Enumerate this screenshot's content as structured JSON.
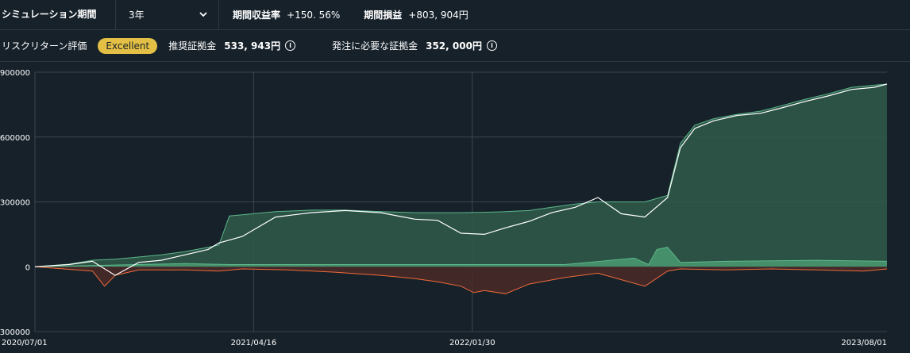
{
  "header": {
    "simulation_label": "シミュレーション期間",
    "period_value": "3年",
    "return_label": "期間収益率",
    "return_value": "+150. 56%",
    "pnl_label": "期間損益",
    "pnl_value": "+803, 904円"
  },
  "risk": {
    "label": "リスクリターン評価",
    "badge": "Excellent",
    "recommended_label": "推奨証拠金",
    "recommended_value": "533, 943円",
    "required_label": "発注に必要な証拠金",
    "required_value": "352, 000円"
  },
  "colors": {
    "background": "#16212a",
    "equity_line": "#ffffff",
    "positive_fill": "#2f5a4a",
    "positive_line": "#5db88a",
    "negative_fill": "#4a2a28",
    "negative_line": "#f06a3a",
    "badge": "#e3c045",
    "grid": "#3a4650"
  },
  "chart_data": {
    "type": "area",
    "x_start": "2020/07/01",
    "x_end": "2023/08/01",
    "x_tick_labels": [
      "2020/07/01",
      "2021/04/16",
      "2022/01/30",
      "2023/08/01"
    ],
    "y_tick_labels": [
      "900000",
      "600000",
      "300000",
      "0",
      "-300000"
    ],
    "ylim": [
      -300000,
      900000
    ],
    "grid": true,
    "series": [
      {
        "role": "cumulative-pnl",
        "style": "white line",
        "x": [
          "2020/07/01",
          "2020/08/15",
          "2020/09/15",
          "2020/10/15",
          "2020/11/15",
          "2020/12/15",
          "2021/01/15",
          "2021/02/15",
          "2021/03/01",
          "2021/04/01",
          "2021/05/15",
          "2021/07/01",
          "2021/08/15",
          "2021/10/01",
          "2021/11/15",
          "2021/12/15",
          "2022/01/15",
          "2022/02/15",
          "2022/03/15",
          "2022/04/15",
          "2022/05/15",
          "2022/06/15",
          "2022/07/15",
          "2022/08/15",
          "2022/09/15",
          "2022/10/15",
          "2022/11/01",
          "2022/11/20",
          "2022/12/15",
          "2023/01/15",
          "2023/02/15",
          "2023/03/15",
          "2023/04/15",
          "2023/05/15",
          "2023/06/15",
          "2023/07/15",
          "2023/08/01"
        ],
        "values": [
          0,
          10000,
          25000,
          -40000,
          20000,
          30000,
          55000,
          80000,
          110000,
          140000,
          230000,
          250000,
          260000,
          250000,
          220000,
          215000,
          155000,
          150000,
          180000,
          210000,
          250000,
          275000,
          320000,
          245000,
          230000,
          320000,
          550000,
          640000,
          675000,
          700000,
          710000,
          735000,
          765000,
          790000,
          820000,
          830000,
          845000
        ]
      },
      {
        "role": "peak-equity",
        "style": "green line",
        "x": [
          "2020/07/01",
          "2020/08/15",
          "2020/09/15",
          "2020/10/15",
          "2020/11/15",
          "2020/12/15",
          "2021/01/15",
          "2021/02/15",
          "2021/03/01",
          "2021/03/15",
          "2021/04/01",
          "2021/05/15",
          "2021/07/01",
          "2021/08/15",
          "2021/10/01",
          "2021/11/15",
          "2021/12/15",
          "2022/01/15",
          "2022/02/15",
          "2022/03/15",
          "2022/04/15",
          "2022/05/15",
          "2022/06/15",
          "2022/07/15",
          "2022/08/15",
          "2022/09/15",
          "2022/10/15",
          "2022/11/01",
          "2022/11/20",
          "2022/12/15",
          "2023/01/15",
          "2023/02/15",
          "2023/03/15",
          "2023/04/15",
          "2023/05/15",
          "2023/06/15",
          "2023/07/15",
          "2023/08/01"
        ],
        "values": [
          0,
          12000,
          30000,
          35000,
          45000,
          55000,
          70000,
          90000,
          100000,
          235000,
          240000,
          255000,
          262000,
          262000,
          255000,
          250000,
          250000,
          250000,
          252000,
          255000,
          260000,
          275000,
          290000,
          300000,
          300000,
          300000,
          330000,
          570000,
          655000,
          685000,
          705000,
          720000,
          745000,
          775000,
          800000,
          830000,
          840000,
          845000
        ]
      },
      {
        "role": "drawdown",
        "style": "orange line",
        "x": [
          "2020/07/01",
          "2020/09/15",
          "2020/10/01",
          "2020/10/15",
          "2020/11/15",
          "2021/01/15",
          "2021/03/01",
          "2021/04/01",
          "2021/06/01",
          "2021/08/01",
          "2021/10/01",
          "2021/11/15",
          "2021/12/15",
          "2022/01/15",
          "2022/02/01",
          "2022/02/15",
          "2022/03/15",
          "2022/04/15",
          "2022/06/01",
          "2022/07/15",
          "2022/08/15",
          "2022/09/15",
          "2022/10/15",
          "2022/11/01",
          "2023/01/01",
          "2023/03/01",
          "2023/05/01",
          "2023/07/01",
          "2023/08/01"
        ],
        "values": [
          0,
          -20000,
          -90000,
          -40000,
          -15000,
          -15000,
          -20000,
          -10000,
          -15000,
          -25000,
          -40000,
          -55000,
          -70000,
          -90000,
          -120000,
          -110000,
          -125000,
          -80000,
          -50000,
          -30000,
          -60000,
          -90000,
          -20000,
          -10000,
          -15000,
          -10000,
          -15000,
          -20000,
          -10000
        ]
      },
      {
        "role": "runup",
        "style": "green filled line",
        "x": [
          "2020/07/01",
          "2021/01/15",
          "2021/03/15",
          "2021/06/01",
          "2021/09/01",
          "2021/12/01",
          "2022/03/01",
          "2022/06/01",
          "2022/09/01",
          "2022/09/20",
          "2022/10/01",
          "2022/10/15",
          "2022/11/01",
          "2023/01/01",
          "2023/05/01",
          "2023/08/01"
        ],
        "values": [
          0,
          15000,
          10000,
          10000,
          10000,
          10000,
          10000,
          10000,
          40000,
          10000,
          80000,
          90000,
          20000,
          25000,
          30000,
          25000
        ]
      }
    ]
  }
}
